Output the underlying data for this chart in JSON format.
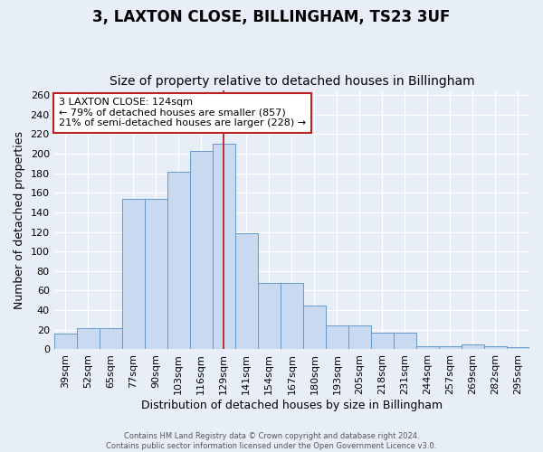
{
  "title": "3, LAXTON CLOSE, BILLINGHAM, TS23 3UF",
  "subtitle": "Size of property relative to detached houses in Billingham",
  "xlabel": "Distribution of detached houses by size in Billingham",
  "ylabel": "Number of detached properties",
  "categories": [
    "39sqm",
    "52sqm",
    "65sqm",
    "77sqm",
    "90sqm",
    "103sqm",
    "116sqm",
    "129sqm",
    "141sqm",
    "154sqm",
    "167sqm",
    "180sqm",
    "193sqm",
    "205sqm",
    "218sqm",
    "231sqm",
    "244sqm",
    "257sqm",
    "269sqm",
    "282sqm",
    "295sqm"
  ],
  "values": [
    16,
    22,
    22,
    154,
    154,
    181,
    203,
    210,
    119,
    68,
    68,
    45,
    24,
    24,
    17,
    17,
    3,
    3,
    5,
    3,
    2
  ],
  "bar_color": "#c9d9f0",
  "bar_edge_color": "#6699cc",
  "bg_color": "#e8eef8",
  "grid_color": "#ffffff",
  "vline_x": 7.0,
  "vline_color": "#bb2222",
  "annotation_text": "3 LAXTON CLOSE: 124sqm\n← 79% of detached houses are smaller (857)\n21% of semi-detached houses are larger (228) →",
  "annotation_box_color": "#ffffff",
  "annotation_box_edge": "#bb2222",
  "footnote1": "Contains HM Land Registry data © Crown copyright and database right 2024.",
  "footnote2": "Contains public sector information licensed under the Open Government Licence v3.0.",
  "ylim": [
    0,
    265
  ],
  "yticks": [
    0,
    20,
    40,
    60,
    80,
    100,
    120,
    140,
    160,
    180,
    200,
    220,
    240,
    260
  ],
  "title_fontsize": 12,
  "subtitle_fontsize": 10,
  "xlabel_fontsize": 9,
  "ylabel_fontsize": 9,
  "tick_fontsize": 8,
  "annotation_fontsize": 8
}
